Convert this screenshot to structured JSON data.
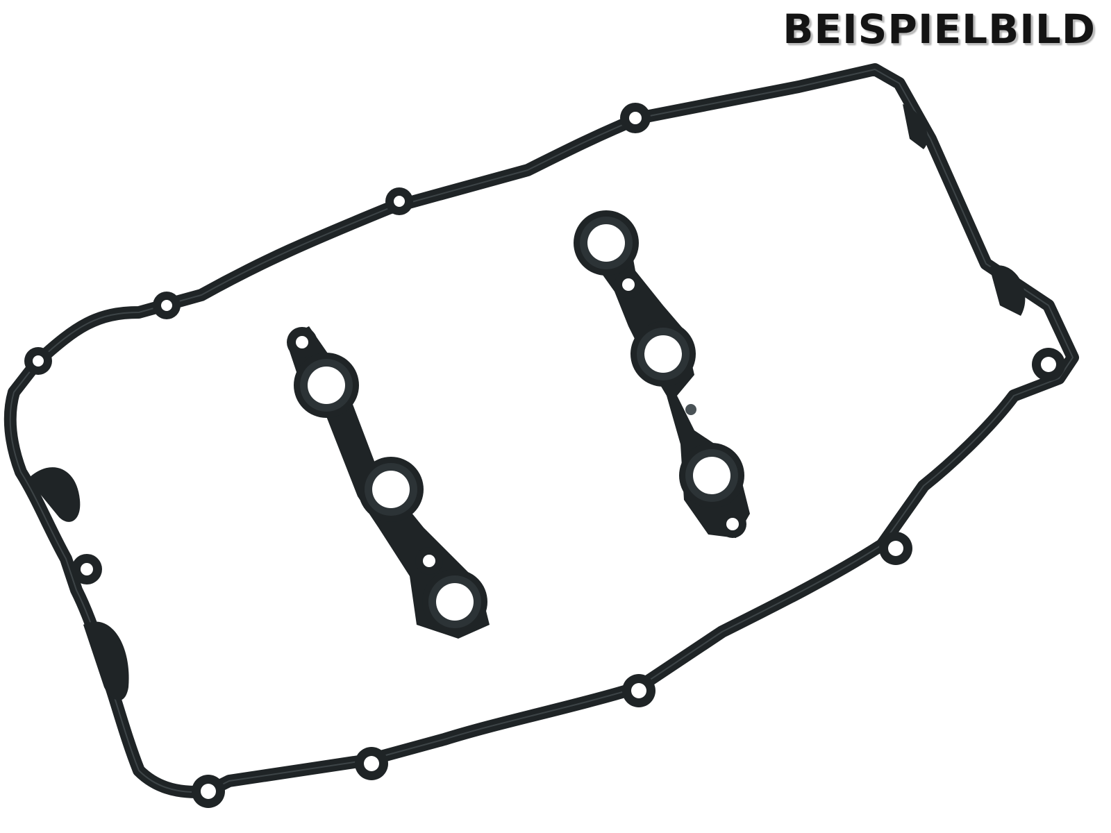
{
  "watermark": {
    "text": "BEISPIELBILD"
  },
  "photo": {
    "subject_icon": "valve-cover-gasket-set",
    "colors": {
      "background": "#ffffff",
      "rubber": "#1f2426",
      "rubber_highlight": "#4a5256",
      "rubber_inner": "#2c3336"
    }
  }
}
